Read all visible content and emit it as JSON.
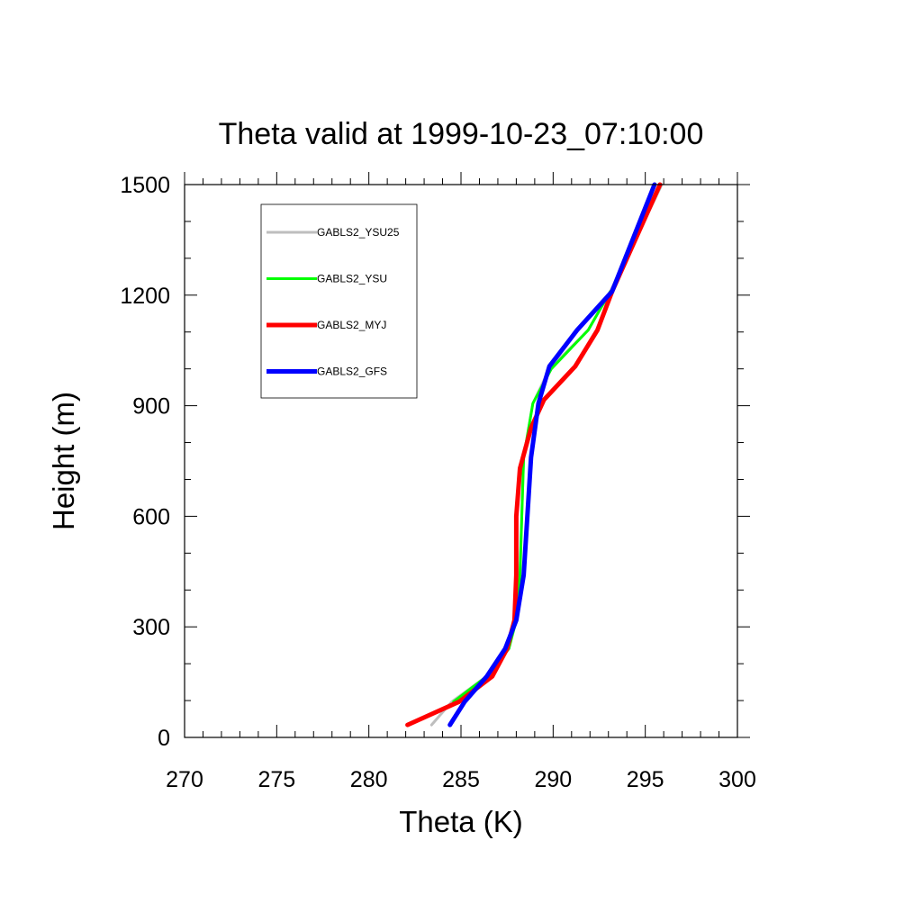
{
  "chart_data": {
    "type": "line",
    "title": "Theta valid at 1999-10-23_07:10:00",
    "xlabel": "Theta (K)",
    "ylabel": "Height (m)",
    "xlim": [
      270,
      300
    ],
    "ylim": [
      0,
      1500
    ],
    "xticks": [
      270,
      275,
      280,
      285,
      290,
      295,
      300
    ],
    "yticks": [
      0,
      300,
      600,
      900,
      1200,
      1500
    ],
    "grid": false,
    "legend_position": "top-left",
    "series": [
      {
        "name": "GABLS2_YSU25",
        "color": "#bebebe",
        "points": [
          [
            283.4,
            34
          ],
          [
            284.5,
            97
          ],
          [
            286.4,
            166
          ],
          [
            287.5,
            241
          ],
          [
            288.0,
            318
          ],
          [
            288.2,
            440
          ],
          [
            288.3,
            600
          ],
          [
            288.4,
            760
          ],
          [
            288.9,
            906
          ],
          [
            289.8,
            1000
          ],
          [
            291.9,
            1105
          ],
          [
            293.1,
            1210
          ],
          [
            295.9,
            1500
          ]
        ]
      },
      {
        "name": "GABLS2_YSU",
        "color": "#00ff00",
        "points": [
          [
            284.6,
            97
          ],
          [
            286.4,
            166
          ],
          [
            287.6,
            241
          ],
          [
            288.0,
            318
          ],
          [
            288.2,
            440
          ],
          [
            288.3,
            600
          ],
          [
            288.4,
            760
          ],
          [
            288.9,
            906
          ],
          [
            289.9,
            1000
          ],
          [
            291.9,
            1105
          ],
          [
            293.1,
            1210
          ]
        ]
      },
      {
        "name": "GABLS2_MYJ",
        "color": "#ff0000",
        "points": [
          [
            282.1,
            34
          ],
          [
            284.9,
            97
          ],
          [
            286.7,
            166
          ],
          [
            287.5,
            241
          ],
          [
            287.9,
            318
          ],
          [
            288.0,
            440
          ],
          [
            288.0,
            600
          ],
          [
            288.2,
            730
          ],
          [
            288.8,
            840
          ],
          [
            289.5,
            916
          ],
          [
            291.2,
            1007
          ],
          [
            292.4,
            1105
          ],
          [
            293.2,
            1210
          ],
          [
            295.8,
            1500
          ]
        ]
      },
      {
        "name": "GABLS2_GFS",
        "color": "#0000ff",
        "points": [
          [
            284.4,
            34
          ],
          [
            285.2,
            97
          ],
          [
            286.4,
            166
          ],
          [
            287.4,
            241
          ],
          [
            288.0,
            318
          ],
          [
            288.4,
            440
          ],
          [
            288.6,
            600
          ],
          [
            288.8,
            760
          ],
          [
            289.2,
            906
          ],
          [
            289.8,
            1007
          ],
          [
            291.3,
            1105
          ],
          [
            293.2,
            1210
          ],
          [
            295.5,
            1500
          ]
        ]
      }
    ]
  },
  "line_widths": [
    3,
    3,
    5,
    5
  ]
}
